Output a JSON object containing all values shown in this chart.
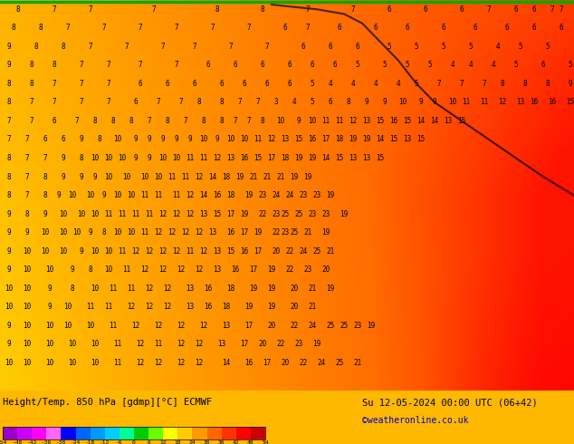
{
  "title_left": "Height/Temp. 850 hPa [gdmp][°C] ECMWF",
  "title_right": "Su 12-05-2024 00:00 UTC (06+42)",
  "credit": "©weatheronline.co.uk",
  "colorbar_levels": [
    -54,
    -48,
    -42,
    -36,
    -30,
    -24,
    -18,
    -12,
    -6,
    0,
    6,
    12,
    18,
    24,
    30,
    36,
    42,
    48,
    54
  ],
  "colorbar_colors": [
    "#9900CC",
    "#CC00FF",
    "#FF00FF",
    "#FF66FF",
    "#0000FF",
    "#0066FF",
    "#0099FF",
    "#00CCFF",
    "#00FF99",
    "#00CC00",
    "#66FF00",
    "#FFFF00",
    "#FFCC00",
    "#FF9900",
    "#FF6600",
    "#FF3300",
    "#FF0000",
    "#CC0000"
  ],
  "bg_color_left": "#FFB300",
  "bg_color_right": "#FF3300",
  "map_gradient_left": "#FFCC44",
  "map_gradient_right": "#FF4400",
  "green_line_top": "#00AA00",
  "figsize": [
    6.34,
    4.9
  ],
  "dpi": 100,
  "numbers_color": "#000000",
  "contour_color": "#000000",
  "text_color_left": "#000000",
  "text_color_right": "#000000",
  "credit_color": "#0000CC"
}
